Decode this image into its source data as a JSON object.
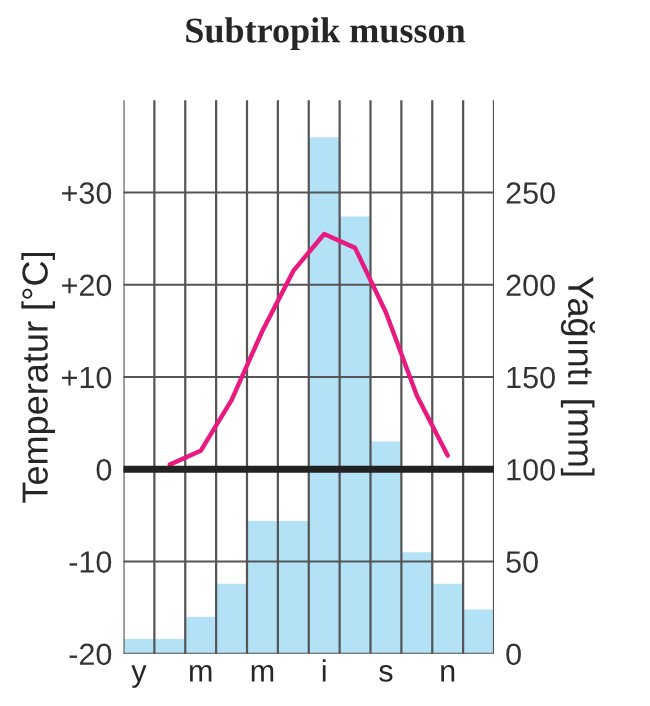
{
  "chart_data": {
    "type": "bar",
    "title": "Subtropik musson",
    "ylabel": "Temperatur [°C]",
    "y2label": "Yağıntı [mm]",
    "categories": [
      "y",
      null,
      "m",
      null,
      "m",
      null,
      "i",
      null,
      "s",
      null,
      "n",
      null
    ],
    "series": [
      {
        "axis": "y2",
        "color": "#b3e2f7",
        "values": [
          8,
          8,
          20,
          38,
          72,
          72,
          280,
          237,
          115,
          55,
          38,
          24
        ]
      },
      {
        "type": "line",
        "axis": "y",
        "color": "#e8197f",
        "values": [
          null,
          0.5,
          2,
          7.5,
          15,
          21.5,
          25.5,
          24,
          17,
          8,
          1.5,
          null
        ]
      }
    ],
    "ylim": [
      -20,
      40
    ],
    "yticks": [
      {
        "value": -20,
        "label": "-20"
      },
      {
        "value": -10,
        "label": "-10"
      },
      0,
      {
        "value": 10,
        "label": "+10"
      },
      {
        "value": 20,
        "label": "+20"
      },
      {
        "value": 30,
        "label": "+30"
      }
    ],
    "y2lim": [
      0,
      300
    ],
    "y2ticks": [
      0,
      50,
      100,
      150,
      200,
      250
    ],
    "ref_lines": [
      {
        "axis": "y",
        "value": 0,
        "color": "#222222"
      }
    ],
    "grid": true,
    "marker": "none",
    "line_style": "solid"
  }
}
